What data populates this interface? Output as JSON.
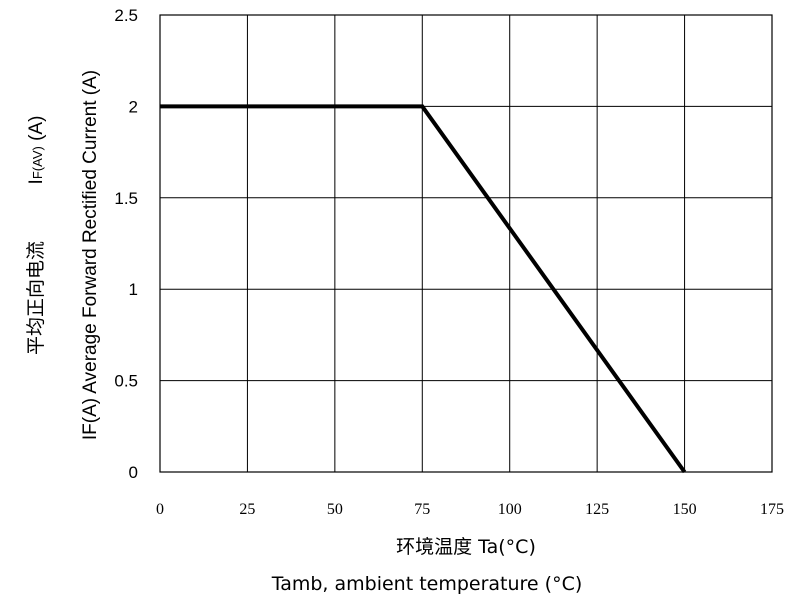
{
  "chart_data": {
    "type": "line",
    "x": [
      0,
      75,
      150
    ],
    "series": [
      {
        "values": [
          2,
          2,
          0
        ],
        "color": "#000000"
      }
    ],
    "xlim": [
      0,
      175
    ],
    "ylim": [
      0,
      2.5
    ],
    "xticks": [
      "0",
      "25",
      "50",
      "75",
      "100",
      "125",
      "150",
      "175"
    ],
    "yticks": [
      "0",
      "0.5",
      "1",
      "1.5",
      "2",
      "2.5"
    ],
    "xlabel_cn": "环境温度 Ta(°C)",
    "xlabel_en": "Tamb, ambient temperature (°C)",
    "ylabel_cn": "平均正向电流",
    "ylabel_symbol_main": "I",
    "ylabel_symbol_sub": "F(AV)",
    "ylabel_symbol_unit": " (A)",
    "ylabel_en": "IF(A)  Average Forward Rectified Current (A)",
    "grid": true
  }
}
